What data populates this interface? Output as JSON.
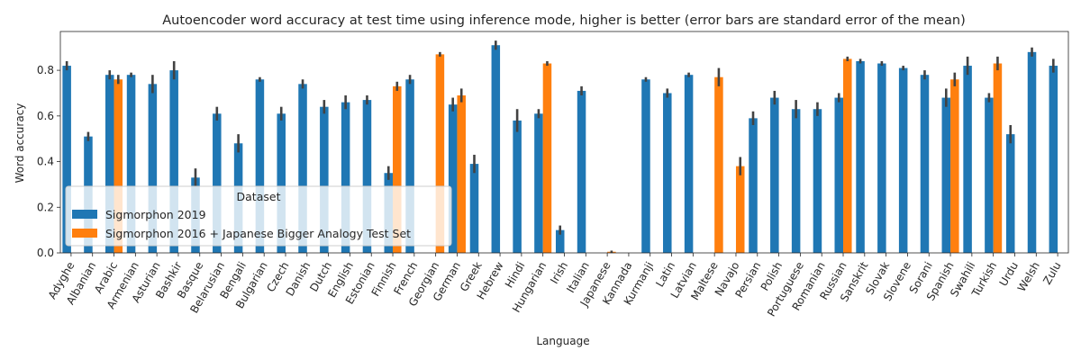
{
  "chart_data": {
    "type": "bar",
    "title": "Autoencoder word accuracy at test time using inference mode, higher is better (error bars are standard error of the mean)",
    "xlabel": "Language",
    "ylabel": "Word accuracy",
    "ylim": [
      0,
      0.97
    ],
    "yticks": [
      "0.0",
      "0.2",
      "0.4",
      "0.6",
      "0.8"
    ],
    "grid": false,
    "legend": {
      "title": "Dataset",
      "placement": "lower-left"
    },
    "categories": [
      "Adyghe",
      "Albanian",
      "Arabic",
      "Armenian",
      "Asturian",
      "Bashkir",
      "Basque",
      "Belarusian",
      "Bengali",
      "Bulgarian",
      "Czech",
      "Danish",
      "Dutch",
      "English",
      "Estonian",
      "Finnish",
      "French",
      "Georgian",
      "German",
      "Greek",
      "Hebrew",
      "Hindi",
      "Hungarian",
      "Irish",
      "Italian",
      "Japanese",
      "Kannada",
      "Kurmanji",
      "Latin",
      "Latvian",
      "Maltese",
      "Navajo",
      "Persian",
      "Polish",
      "Portuguese",
      "Romanian",
      "Russian",
      "Sanskrit",
      "Slovak",
      "Slovene",
      "Sorani",
      "Spanish",
      "Swahili",
      "Turkish",
      "Urdu",
      "Welsh",
      "Zulu"
    ],
    "series": [
      {
        "name": "Sigmorphon 2019",
        "color": "#1f77b4",
        "values": [
          0.82,
          0.51,
          0.78,
          0.78,
          0.74,
          0.8,
          0.33,
          0.61,
          0.48,
          0.76,
          0.61,
          0.74,
          0.64,
          0.66,
          0.67,
          0.35,
          0.76,
          null,
          0.65,
          0.39,
          0.91,
          0.58,
          0.61,
          0.1,
          0.71,
          null,
          null,
          0.76,
          0.7,
          0.78,
          null,
          null,
          0.59,
          0.68,
          0.63,
          0.63,
          0.68,
          0.84,
          0.83,
          0.81,
          0.78,
          0.68,
          0.82,
          0.68,
          0.52,
          0.88,
          0.82
        ],
        "errors": [
          0.02,
          0.02,
          0.02,
          0.01,
          0.04,
          0.04,
          0.04,
          0.03,
          0.04,
          0.01,
          0.03,
          0.02,
          0.03,
          0.03,
          0.02,
          0.03,
          0.02,
          null,
          0.03,
          0.04,
          0.02,
          0.05,
          0.02,
          0.02,
          0.02,
          null,
          null,
          0.01,
          0.02,
          0.01,
          null,
          null,
          0.03,
          0.03,
          0.04,
          0.03,
          0.02,
          0.01,
          0.01,
          0.01,
          0.02,
          0.04,
          0.04,
          0.02,
          0.04,
          0.02,
          0.03
        ]
      },
      {
        "name": "Sigmorphon 2016 + Japanese Bigger Analogy Test Set",
        "color": "#ff7f0e",
        "values": [
          null,
          null,
          0.76,
          null,
          null,
          null,
          null,
          null,
          null,
          null,
          null,
          null,
          null,
          null,
          null,
          0.73,
          null,
          0.87,
          0.69,
          null,
          null,
          null,
          0.83,
          null,
          null,
          0.005,
          null,
          null,
          null,
          null,
          0.77,
          0.38,
          null,
          null,
          null,
          null,
          0.85,
          null,
          null,
          null,
          null,
          0.76,
          null,
          0.83,
          null,
          null,
          null
        ],
        "errors": [
          null,
          null,
          0.02,
          null,
          null,
          null,
          null,
          null,
          null,
          null,
          null,
          null,
          null,
          null,
          null,
          0.02,
          null,
          0.01,
          0.03,
          null,
          null,
          null,
          0.01,
          null,
          null,
          0.005,
          null,
          null,
          null,
          null,
          0.04,
          0.04,
          null,
          null,
          null,
          null,
          0.01,
          null,
          null,
          null,
          null,
          0.03,
          null,
          0.03,
          null,
          null,
          null
        ]
      }
    ]
  }
}
